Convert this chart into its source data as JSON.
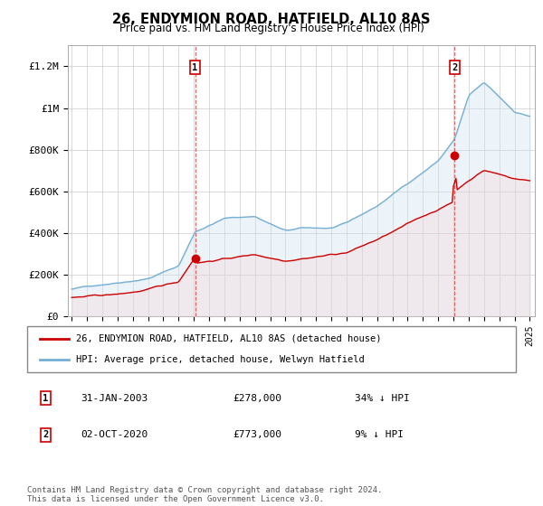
{
  "title": "26, ENDYMION ROAD, HATFIELD, AL10 8AS",
  "subtitle": "Price paid vs. HM Land Registry's House Price Index (HPI)",
  "ylabel_ticks": [
    "£0",
    "£200K",
    "£400K",
    "£600K",
    "£800K",
    "£1M",
    "£1.2M"
  ],
  "ytick_values": [
    0,
    200000,
    400000,
    600000,
    800000,
    1000000,
    1200000
  ],
  "ylim": [
    0,
    1300000
  ],
  "hpi_color": "#74afd4",
  "hpi_fill_color": "#cce0f0",
  "price_color": "#cc0000",
  "price_fill_color": "#f5cccc",
  "marker1_year_idx": 97,
  "marker2_year_idx": 301,
  "legend_line1": "26, ENDYMION ROAD, HATFIELD, AL10 8AS (detached house)",
  "legend_line2": "HPI: Average price, detached house, Welwyn Hatfield",
  "footer": "Contains HM Land Registry data © Crown copyright and database right 2024.\nThis data is licensed under the Open Government Licence v3.0.",
  "background_color": "#ffffff",
  "grid_color": "#cccccc",
  "x_start_year": 1995,
  "x_end_year": 2025,
  "num_months": 361
}
